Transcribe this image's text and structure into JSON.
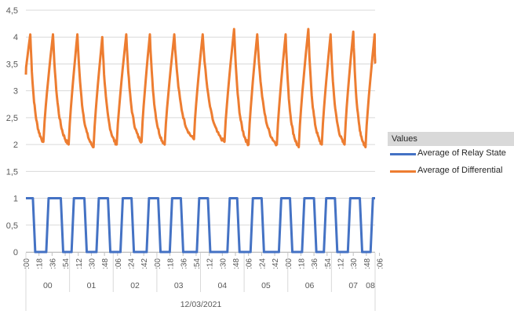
{
  "chart_data": {
    "type": "line",
    "y_ticks": [
      "0",
      "0,5",
      "1",
      "1,5",
      "2",
      "2,5",
      "3",
      "3,5",
      "4",
      "4,5"
    ],
    "ylim": [
      0,
      4.5
    ],
    "grid": true,
    "x_minute_labels": [
      ":00",
      ":18",
      ":36",
      ":54",
      ":12",
      ":30",
      ":48",
      ":06",
      ":24",
      ":42",
      ":00",
      ":18",
      ":36",
      ":54",
      ":12",
      ":30",
      ":48",
      ":06",
      ":24",
      ":42",
      ":00",
      ":18",
      ":36",
      ":54",
      ":12",
      ":30",
      ":48",
      ":06"
    ],
    "x_hour_labels": [
      "00",
      "01",
      "02",
      "03",
      "04",
      "05",
      "06",
      "07",
      "08"
    ],
    "x_date_label": "12/03/2021",
    "legend_title": "Values",
    "legend_position": "right",
    "series": [
      {
        "name": "Average of Relay State",
        "color": "#4472c4",
        "on_intervals": [
          [
            0.0,
            0.16
          ],
          [
            0.52,
            0.8
          ],
          [
            1.1,
            1.34
          ],
          [
            1.67,
            1.88
          ],
          [
            2.22,
            2.42
          ],
          [
            2.82,
            3.03
          ],
          [
            3.35,
            3.55
          ],
          [
            3.97,
            4.17
          ],
          [
            4.67,
            4.84
          ],
          [
            5.2,
            5.4
          ],
          [
            5.85,
            6.05
          ],
          [
            6.38,
            6.6
          ],
          [
            6.88,
            7.08
          ],
          [
            7.43,
            7.65
          ],
          [
            7.95,
            8.0
          ]
        ],
        "values_when_on": 1,
        "values_when_off": 0
      },
      {
        "name": "Average of Differential",
        "color": "#ed7d31",
        "cycles": [
          {
            "t_min": -0.15,
            "v_min": 2.1,
            "t_peak": 0.1,
            "v_peak": 4.05
          },
          {
            "t_min": 0.4,
            "v_min": 2.05,
            "t_peak": 0.62,
            "v_peak": 4.05
          },
          {
            "t_min": 0.98,
            "v_min": 2.0,
            "t_peak": 1.18,
            "v_peak": 4.05
          },
          {
            "t_min": 1.55,
            "v_min": 1.95,
            "t_peak": 1.75,
            "v_peak": 4.0
          },
          {
            "t_min": 2.08,
            "v_min": 2.0,
            "t_peak": 2.3,
            "v_peak": 4.05
          },
          {
            "t_min": 2.65,
            "v_min": 2.05,
            "t_peak": 2.84,
            "v_peak": 4.05
          },
          {
            "t_min": 3.18,
            "v_min": 2.0,
            "t_peak": 3.4,
            "v_peak": 4.05
          },
          {
            "t_min": 3.85,
            "v_min": 2.1,
            "t_peak": 4.05,
            "v_peak": 4.05
          },
          {
            "t_min": 4.55,
            "v_min": 2.05,
            "t_peak": 4.77,
            "v_peak": 4.15
          },
          {
            "t_min": 5.1,
            "v_min": 2.0,
            "t_peak": 5.3,
            "v_peak": 4.05
          },
          {
            "t_min": 5.75,
            "v_min": 2.0,
            "t_peak": 5.95,
            "v_peak": 4.05
          },
          {
            "t_min": 6.25,
            "v_min": 1.95,
            "t_peak": 6.47,
            "v_peak": 4.15
          },
          {
            "t_min": 6.78,
            "v_min": 2.0,
            "t_peak": 6.98,
            "v_peak": 4.05
          },
          {
            "t_min": 7.3,
            "v_min": 2.0,
            "t_peak": 7.5,
            "v_peak": 4.1
          },
          {
            "t_min": 7.78,
            "v_min": 1.95,
            "t_peak": 7.99,
            "v_peak": 4.05
          }
        ],
        "end_value": 3.55
      }
    ]
  }
}
